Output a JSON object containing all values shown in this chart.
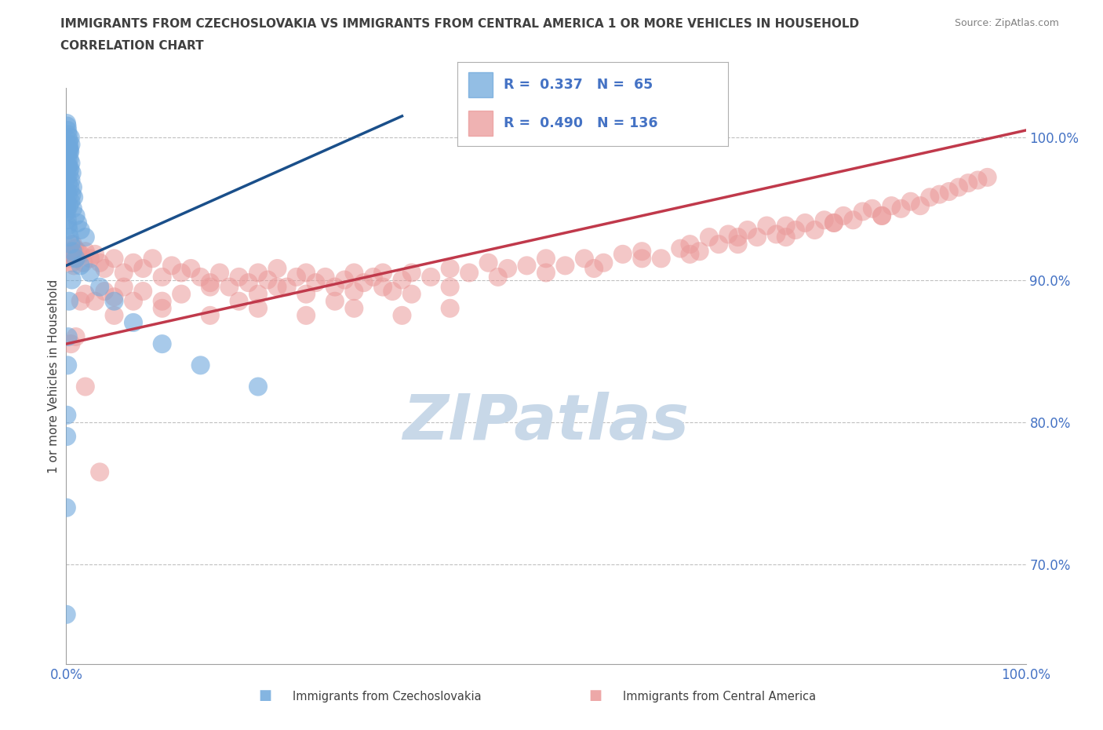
{
  "title_line1": "IMMIGRANTS FROM CZECHOSLOVAKIA VS IMMIGRANTS FROM CENTRAL AMERICA 1 OR MORE VEHICLES IN HOUSEHOLD",
  "title_line2": "CORRELATION CHART",
  "source": "Source: ZipAtlas.com",
  "ylabel": "1 or more Vehicles in Household",
  "xlim": [
    0.0,
    100.0
  ],
  "ylim": [
    63.0,
    103.5
  ],
  "yticks": [
    70.0,
    80.0,
    90.0,
    100.0
  ],
  "blue_R": 0.337,
  "blue_N": 65,
  "pink_R": 0.49,
  "pink_N": 136,
  "legend_label_blue": "Immigrants from Czechoslovakia",
  "legend_label_pink": "Immigrants from Central America",
  "blue_color": "#6fa8dc",
  "pink_color": "#ea9999",
  "blue_line_color": "#1a4f8a",
  "pink_line_color": "#c0394b",
  "watermark": "ZIPatlas",
  "watermark_color": "#c8d8e8",
  "title_color": "#404040",
  "axis_label_color": "#4472c4",
  "blue_x": [
    0.05,
    0.1,
    0.15,
    0.2,
    0.25,
    0.3,
    0.35,
    0.4,
    0.45,
    0.5,
    0.05,
    0.1,
    0.15,
    0.2,
    0.25,
    0.3,
    0.35,
    0.4,
    0.5,
    0.6,
    0.05,
    0.1,
    0.15,
    0.2,
    0.3,
    0.4,
    0.5,
    0.6,
    0.7,
    0.8,
    0.05,
    0.1,
    0.2,
    0.3,
    0.5,
    0.7,
    1.0,
    1.2,
    1.5,
    2.0,
    0.05,
    0.08,
    0.12,
    0.18,
    0.25,
    0.35,
    0.5,
    0.7,
    1.0,
    1.5,
    2.5,
    3.5,
    5.0,
    7.0,
    10.0,
    14.0,
    20.0,
    0.6,
    0.3,
    0.2,
    0.15,
    0.08,
    0.06,
    0.04,
    0.03
  ],
  "blue_y": [
    101.0,
    100.8,
    100.5,
    100.2,
    99.8,
    99.5,
    99.2,
    99.0,
    100.0,
    99.5,
    99.0,
    98.8,
    98.5,
    99.2,
    98.0,
    99.0,
    98.5,
    97.8,
    98.2,
    97.5,
    97.8,
    97.2,
    98.0,
    96.8,
    97.5,
    96.5,
    97.0,
    96.0,
    96.5,
    95.8,
    96.2,
    95.5,
    96.0,
    95.2,
    95.5,
    95.0,
    94.5,
    94.0,
    93.5,
    93.0,
    95.0,
    94.8,
    94.2,
    93.8,
    93.5,
    93.0,
    92.5,
    92.0,
    91.5,
    91.0,
    90.5,
    89.5,
    88.5,
    87.0,
    85.5,
    84.0,
    82.5,
    90.0,
    88.5,
    86.0,
    84.0,
    80.5,
    79.0,
    74.0,
    66.5
  ],
  "pink_x": [
    0.3,
    0.4,
    0.5,
    0.6,
    0.7,
    0.8,
    0.9,
    1.0,
    1.2,
    1.5,
    1.8,
    2.0,
    2.5,
    3.0,
    3.5,
    4.0,
    5.0,
    6.0,
    7.0,
    8.0,
    9.0,
    10.0,
    11.0,
    12.0,
    13.0,
    14.0,
    15.0,
    16.0,
    17.0,
    18.0,
    19.0,
    20.0,
    21.0,
    22.0,
    23.0,
    24.0,
    25.0,
    26.0,
    27.0,
    28.0,
    29.0,
    30.0,
    31.0,
    32.0,
    33.0,
    34.0,
    35.0,
    36.0,
    38.0,
    40.0,
    42.0,
    44.0,
    46.0,
    48.0,
    50.0,
    52.0,
    54.0,
    56.0,
    58.0,
    60.0,
    62.0,
    64.0,
    65.0,
    66.0,
    67.0,
    68.0,
    69.0,
    70.0,
    71.0,
    72.0,
    73.0,
    74.0,
    75.0,
    76.0,
    77.0,
    78.0,
    79.0,
    80.0,
    81.0,
    82.0,
    83.0,
    84.0,
    85.0,
    86.0,
    87.0,
    88.0,
    89.0,
    90.0,
    91.0,
    92.0,
    93.0,
    94.0,
    95.0,
    96.0,
    1.5,
    2.0,
    3.0,
    4.0,
    5.0,
    6.0,
    7.0,
    8.0,
    10.0,
    12.0,
    15.0,
    18.0,
    20.0,
    22.0,
    25.0,
    28.0,
    30.0,
    33.0,
    36.0,
    40.0,
    45.0,
    50.0,
    55.0,
    60.0,
    65.0,
    70.0,
    75.0,
    80.0,
    85.0,
    5.0,
    10.0,
    15.0,
    20.0,
    25.0,
    30.0,
    35.0,
    40.0,
    0.5,
    1.0,
    2.0,
    3.5
  ],
  "pink_y": [
    91.5,
    91.8,
    92.0,
    91.2,
    92.5,
    91.0,
    92.2,
    91.5,
    92.0,
    91.8,
    91.2,
    92.0,
    91.5,
    91.8,
    91.2,
    90.8,
    91.5,
    90.5,
    91.2,
    90.8,
    91.5,
    90.2,
    91.0,
    90.5,
    90.8,
    90.2,
    89.8,
    90.5,
    89.5,
    90.2,
    89.8,
    90.5,
    90.0,
    90.8,
    89.5,
    90.2,
    90.5,
    89.8,
    90.2,
    89.5,
    90.0,
    90.5,
    89.8,
    90.2,
    90.5,
    89.2,
    90.0,
    90.5,
    90.2,
    90.8,
    90.5,
    91.2,
    90.8,
    91.0,
    91.5,
    91.0,
    91.5,
    91.2,
    91.8,
    92.0,
    91.5,
    92.2,
    92.5,
    92.0,
    93.0,
    92.5,
    93.2,
    93.0,
    93.5,
    93.0,
    93.8,
    93.2,
    93.8,
    93.5,
    94.0,
    93.5,
    94.2,
    94.0,
    94.5,
    94.2,
    94.8,
    95.0,
    94.5,
    95.2,
    95.0,
    95.5,
    95.2,
    95.8,
    96.0,
    96.2,
    96.5,
    96.8,
    97.0,
    97.2,
    88.5,
    89.0,
    88.5,
    89.2,
    88.8,
    89.5,
    88.5,
    89.2,
    88.5,
    89.0,
    89.5,
    88.5,
    89.0,
    89.5,
    89.0,
    88.5,
    89.2,
    89.5,
    89.0,
    89.5,
    90.2,
    90.5,
    90.8,
    91.5,
    91.8,
    92.5,
    93.0,
    94.0,
    94.5,
    87.5,
    88.0,
    87.5,
    88.0,
    87.5,
    88.0,
    87.5,
    88.0,
    85.5,
    86.0,
    82.5,
    76.5
  ],
  "blue_trend_x0": 0.0,
  "blue_trend_y0": 91.0,
  "blue_trend_x1": 35.0,
  "blue_trend_y1": 101.5,
  "pink_trend_x0": 0.0,
  "pink_trend_y0": 85.5,
  "pink_trend_x1": 100.0,
  "pink_trend_y1": 100.5
}
